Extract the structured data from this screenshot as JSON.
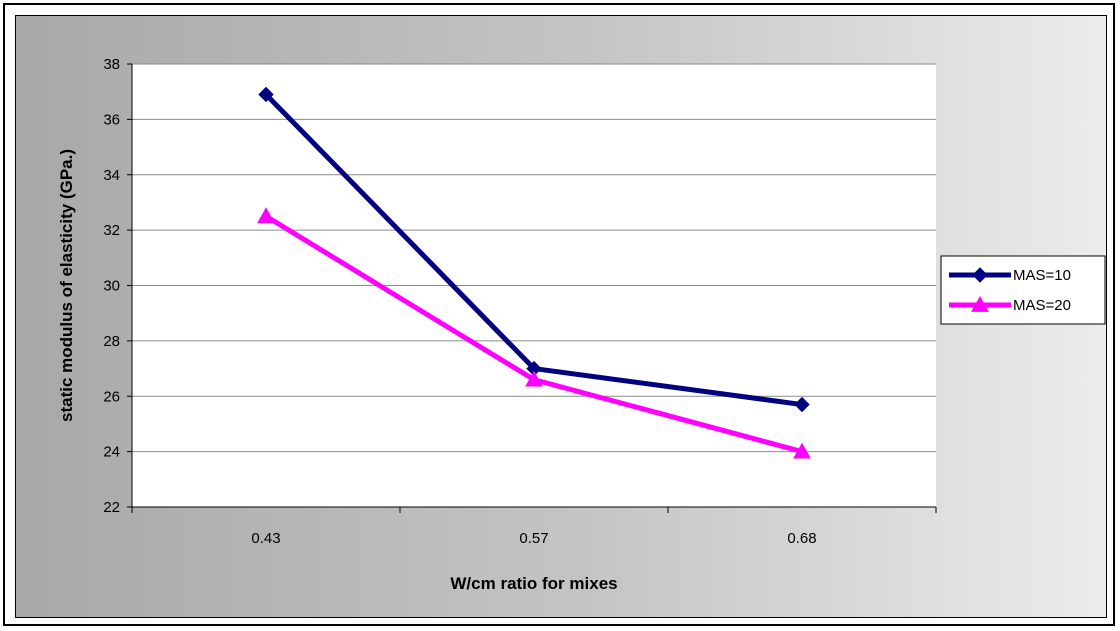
{
  "chart_data": {
    "type": "line",
    "title": "",
    "xlabel": "W/cm ratio for mixes",
    "ylabel": "static modulus of elasticity (GPa.)",
    "categories": [
      "0.43",
      "0.57",
      "0.68"
    ],
    "ylim": [
      22,
      38
    ],
    "yticks": [
      22,
      24,
      26,
      28,
      30,
      32,
      34,
      36,
      38
    ],
    "grid": true,
    "legend_position": "right",
    "series": [
      {
        "name": "MAS=10",
        "values": [
          36.9,
          27.0,
          25.7
        ],
        "color": "#000080",
        "marker": "diamond"
      },
      {
        "name": "MAS=20",
        "values": [
          32.5,
          26.6,
          24.0
        ],
        "color": "#ff00ff",
        "marker": "triangle"
      }
    ]
  }
}
